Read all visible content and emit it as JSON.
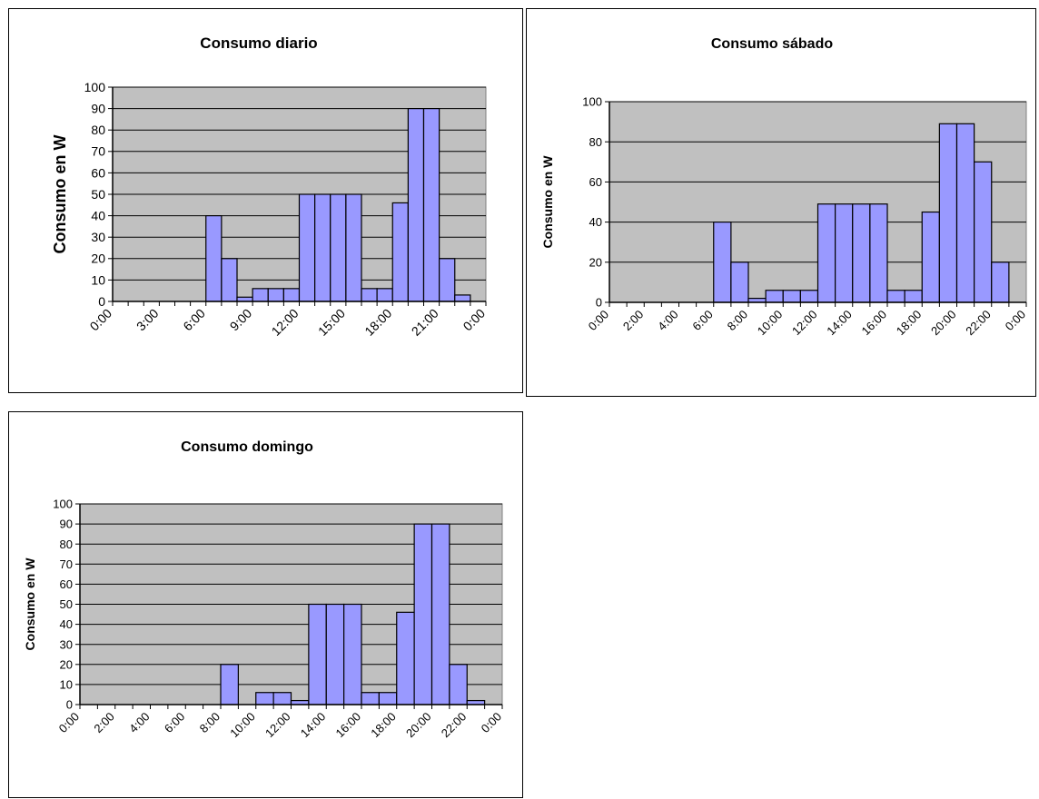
{
  "chart_data": [
    {
      "type": "bar",
      "title": "Consumo diario",
      "xlabel": "",
      "ylabel": "Consumo en W",
      "ylim": [
        0,
        100
      ],
      "yticks": [
        0,
        10,
        20,
        30,
        40,
        50,
        60,
        70,
        80,
        90,
        100
      ],
      "grid": true,
      "legend": "none",
      "xtick_labels": [
        "0:00",
        "3:00",
        "6:00",
        "9:00",
        "12:00",
        "15:00",
        "18:00",
        "21:00",
        "0:00"
      ],
      "categories": [
        "0:00",
        "1:00",
        "2:00",
        "3:00",
        "4:00",
        "5:00",
        "6:00",
        "7:00",
        "8:00",
        "9:00",
        "10:00",
        "11:00",
        "12:00",
        "13:00",
        "14:00",
        "15:00",
        "16:00",
        "17:00",
        "18:00",
        "19:00",
        "20:00",
        "21:00",
        "22:00",
        "23:00"
      ],
      "values": [
        0,
        0,
        0,
        0,
        0,
        0,
        40,
        20,
        2,
        6,
        6,
        6,
        50,
        50,
        50,
        50,
        6,
        6,
        46,
        90,
        90,
        20,
        3,
        0
      ],
      "colors": {
        "bar": "#9999ff",
        "plot_bg": "#c0c0c0"
      }
    },
    {
      "type": "bar",
      "title": "Consumo sábado",
      "xlabel": "",
      "ylabel": "Consumo en W",
      "ylim": [
        0,
        100
      ],
      "yticks": [
        0,
        20,
        40,
        60,
        80,
        100
      ],
      "grid": true,
      "legend": "none",
      "xtick_labels": [
        "0:00",
        "2:00",
        "4:00",
        "6:00",
        "8:00",
        "10:00",
        "12:00",
        "14:00",
        "16:00",
        "18:00",
        "20:00",
        "22:00",
        "0:00"
      ],
      "categories": [
        "0:00",
        "1:00",
        "2:00",
        "3:00",
        "4:00",
        "5:00",
        "6:00",
        "7:00",
        "8:00",
        "9:00",
        "10:00",
        "11:00",
        "12:00",
        "13:00",
        "14:00",
        "15:00",
        "16:00",
        "17:00",
        "18:00",
        "19:00",
        "20:00",
        "21:00",
        "22:00",
        "23:00"
      ],
      "values": [
        0,
        0,
        0,
        0,
        0,
        0,
        40,
        20,
        2,
        6,
        6,
        6,
        49,
        49,
        49,
        49,
        6,
        6,
        45,
        89,
        89,
        70,
        20,
        0
      ],
      "colors": {
        "bar": "#9999ff",
        "plot_bg": "#c0c0c0"
      }
    },
    {
      "type": "bar",
      "title": "Consumo domingo",
      "xlabel": "",
      "ylabel": "Consumo en W",
      "ylim": [
        0,
        100
      ],
      "yticks": [
        0,
        10,
        20,
        30,
        40,
        50,
        60,
        70,
        80,
        90,
        100
      ],
      "grid": true,
      "legend": "none",
      "xtick_labels": [
        "0:00",
        "2:00",
        "4:00",
        "6:00",
        "8:00",
        "10:00",
        "12:00",
        "14:00",
        "16:00",
        "18:00",
        "20:00",
        "22:00",
        "0:00"
      ],
      "categories": [
        "0:00",
        "1:00",
        "2:00",
        "3:00",
        "4:00",
        "5:00",
        "6:00",
        "7:00",
        "8:00",
        "9:00",
        "10:00",
        "11:00",
        "12:00",
        "13:00",
        "14:00",
        "15:00",
        "16:00",
        "17:00",
        "18:00",
        "19:00",
        "20:00",
        "21:00",
        "22:00",
        "23:00"
      ],
      "values": [
        0,
        0,
        0,
        0,
        0,
        0,
        0,
        0,
        20,
        0,
        6,
        6,
        2,
        50,
        50,
        50,
        6,
        6,
        46,
        90,
        90,
        20,
        2,
        0
      ],
      "colors": {
        "bar": "#9999ff",
        "plot_bg": "#c0c0c0"
      }
    }
  ]
}
